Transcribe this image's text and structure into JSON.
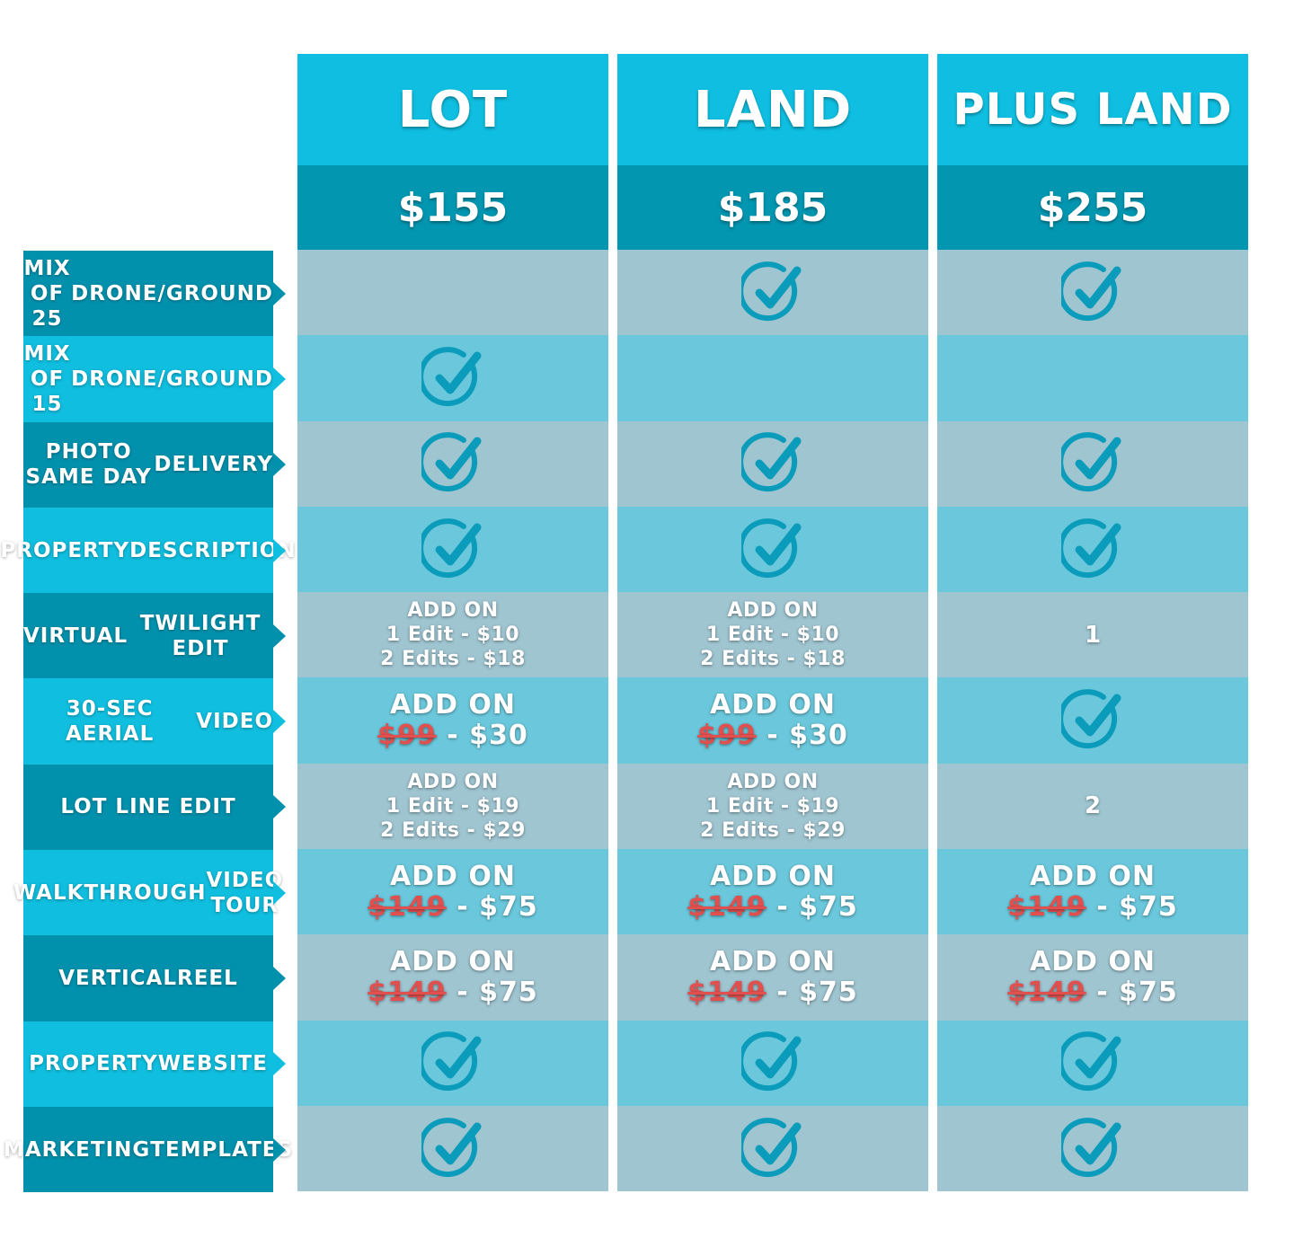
{
  "features": [
    [
      "MIX OF 25",
      "DRONE/GROUND"
    ],
    [
      "MIX OF 15",
      "DRONE/GROUND"
    ],
    [
      "PHOTO SAME DAY",
      "DELIVERY"
    ],
    [
      "PROPERTY",
      "DESCRIPTION"
    ],
    [
      "VIRTUAL",
      "TWILIGHT EDIT"
    ],
    [
      "30-SEC AERIAL",
      "VIDEO"
    ],
    [
      "LOT LINE EDIT"
    ],
    [
      "WALKTHROUGH",
      "VIDEO TOUR"
    ],
    [
      "VERTICAL",
      "REEL"
    ],
    [
      "PROPERTY",
      "WEBSITE"
    ],
    [
      "MARKETING",
      "TEMPLATES"
    ]
  ],
  "plans": [
    {
      "name": "LOT",
      "price": "$155",
      "cells": [
        {
          "type": "empty"
        },
        {
          "type": "check",
          "icon": "check-circle-icon"
        },
        {
          "type": "check",
          "icon": "check-circle-icon"
        },
        {
          "type": "check",
          "icon": "check-circle-icon"
        },
        {
          "type": "lines",
          "lines": [
            "ADD ON",
            "1 Edit - $10",
            "2 Edits - $18"
          ]
        },
        {
          "type": "addon",
          "title": "ADD ON",
          "old": "$99",
          "new": "- $30"
        },
        {
          "type": "lines",
          "lines": [
            "ADD ON",
            "1 Edit - $19",
            "2 Edits - $29"
          ]
        },
        {
          "type": "addon",
          "title": "ADD ON",
          "old": "$149",
          "new": "- $75"
        },
        {
          "type": "addon",
          "title": "ADD ON",
          "old": "$149",
          "new": "- $75"
        },
        {
          "type": "check",
          "icon": "check-circle-icon"
        },
        {
          "type": "check",
          "icon": "check-circle-icon"
        }
      ]
    },
    {
      "name": "LAND",
      "price": "$185",
      "cells": [
        {
          "type": "check",
          "icon": "check-circle-icon"
        },
        {
          "type": "empty"
        },
        {
          "type": "check",
          "icon": "check-circle-icon"
        },
        {
          "type": "check",
          "icon": "check-circle-icon"
        },
        {
          "type": "lines",
          "lines": [
            "ADD ON",
            "1 Edit - $10",
            "2 Edits - $18"
          ]
        },
        {
          "type": "addon",
          "title": "ADD ON",
          "old": "$99",
          "new": "- $30"
        },
        {
          "type": "lines",
          "lines": [
            "ADD ON",
            "1 Edit - $19",
            "2 Edits - $29"
          ]
        },
        {
          "type": "addon",
          "title": "ADD ON",
          "old": "$149",
          "new": "- $75"
        },
        {
          "type": "addon",
          "title": "ADD ON",
          "old": "$149",
          "new": "- $75"
        },
        {
          "type": "check",
          "icon": "check-circle-icon"
        },
        {
          "type": "check",
          "icon": "check-circle-icon"
        }
      ]
    },
    {
      "name": "PLUS LAND",
      "price": "$255",
      "cells": [
        {
          "type": "check",
          "icon": "check-circle-icon"
        },
        {
          "type": "empty"
        },
        {
          "type": "check",
          "icon": "check-circle-icon"
        },
        {
          "type": "check",
          "icon": "check-circle-icon"
        },
        {
          "type": "text",
          "text": "1"
        },
        {
          "type": "check",
          "icon": "check-circle-icon"
        },
        {
          "type": "text",
          "text": "2"
        },
        {
          "type": "addon",
          "title": "ADD ON",
          "old": "$149",
          "new": "- $75"
        },
        {
          "type": "addon",
          "title": "ADD ON",
          "old": "$149",
          "new": "- $75"
        },
        {
          "type": "check",
          "icon": "check-circle-icon"
        },
        {
          "type": "check",
          "icon": "check-circle-icon"
        }
      ]
    }
  ],
  "colors": {
    "header": "#0fbee0",
    "price_band": "#0296b1",
    "row_odd": "#9fc5d1",
    "row_even": "#6bc8dc",
    "check": "#0a9cba",
    "strike": "#e1504f"
  }
}
